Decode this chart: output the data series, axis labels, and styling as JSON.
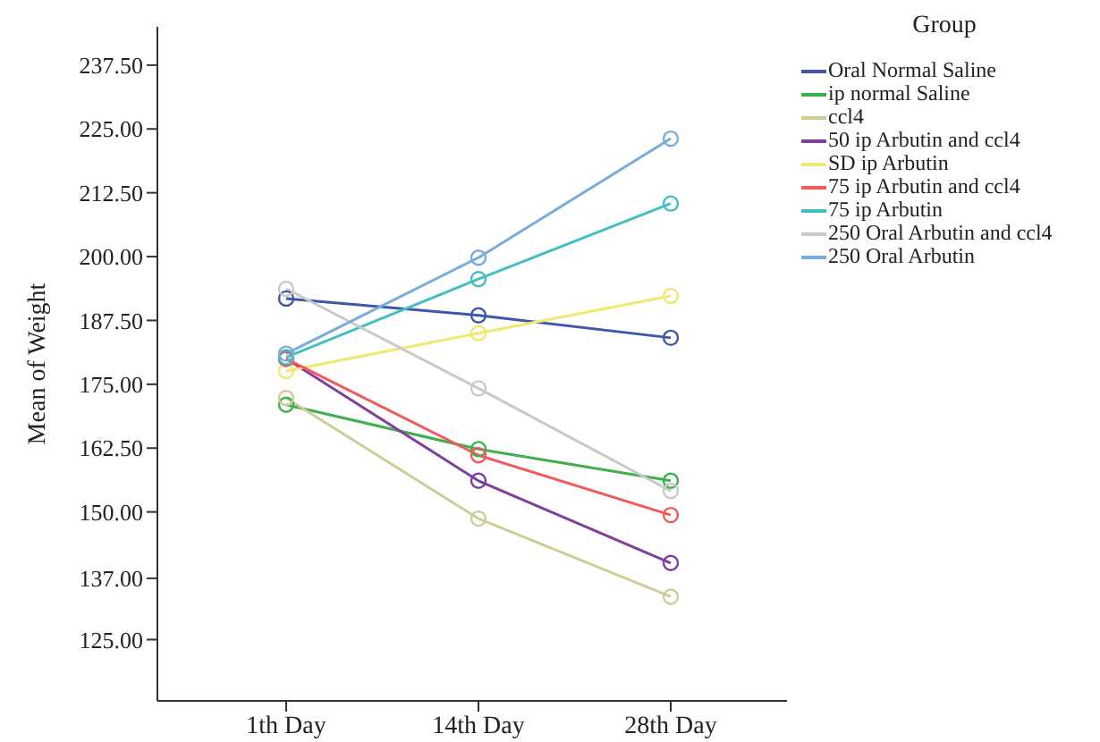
{
  "chart_data": {
    "type": "line",
    "ylabel": "Mean of Weight",
    "legend_title": "Group",
    "categories": [
      "1th Day",
      "14th Day",
      "28th Day"
    ],
    "series": [
      {
        "name": "Oral Normal Saline",
        "color": "#3f57a8",
        "values": [
          191.8,
          188.5,
          184.1
        ]
      },
      {
        "name": "ip normal Saline",
        "color": "#3cb04a",
        "values": [
          171.0,
          162.3,
          156.1
        ]
      },
      {
        "name": "ccl4",
        "color": "#cfcc96",
        "values": [
          172.3,
          148.7,
          133.4
        ]
      },
      {
        "name": "50 ip Arbutin and ccl4",
        "color": "#7e3f9d",
        "values": [
          180.0,
          156.1,
          140.0
        ]
      },
      {
        "name": "SD ip Arbutin",
        "color": "#efe871",
        "values": [
          177.6,
          185.0,
          192.3
        ]
      },
      {
        "name": "75 ip Arbutin and ccl4",
        "color": "#f25a5a",
        "values": [
          180.0,
          161.1,
          149.4
        ]
      },
      {
        "name": "75 ip Arbutin",
        "color": "#41bfc4",
        "values": [
          180.3,
          195.6,
          210.4
        ]
      },
      {
        "name": "250 Oral Arbutin and ccl4",
        "color": "#c9c9c9",
        "values": [
          193.7,
          174.2,
          154.1
        ]
      },
      {
        "name": "250 Oral Arbutin",
        "color": "#77acdc",
        "values": [
          181.0,
          199.8,
          223.1
        ]
      }
    ],
    "ylim": [
      113,
      245
    ],
    "yticks": [
      {
        "value": 237.5,
        "label": "237.50"
      },
      {
        "value": 225,
        "label": "225.00"
      },
      {
        "value": 212.5,
        "label": "212.50"
      },
      {
        "value": 200,
        "label": "200.00"
      },
      {
        "value": 187.5,
        "label": "187.50"
      },
      {
        "value": 175,
        "label": "175.00"
      },
      {
        "value": 162.5,
        "label": "162.50"
      },
      {
        "value": 150,
        "label": "150.00"
      },
      {
        "value": 137,
        "label": "137.00"
      },
      {
        "value": 125,
        "label": "125.00"
      }
    ],
    "grid": false,
    "legend": "top right",
    "marker": "circle",
    "line_style": "solid"
  }
}
